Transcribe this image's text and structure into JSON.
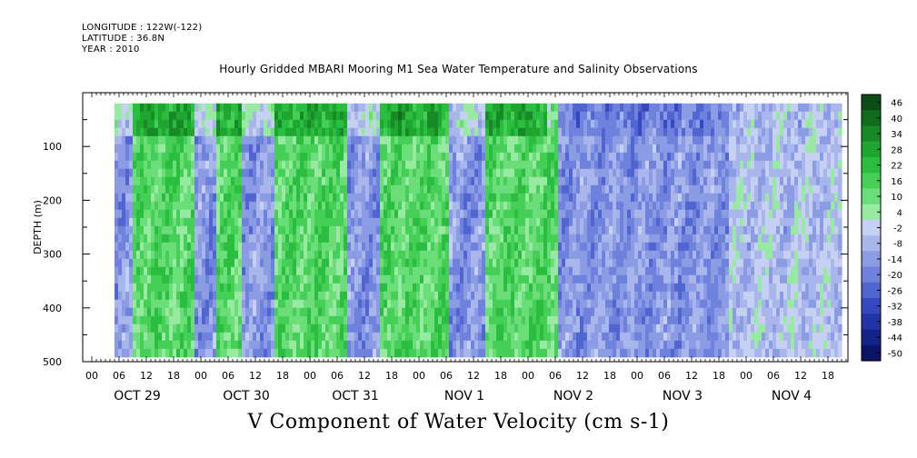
{
  "header": {
    "longitude": "LONGITUDE : 122W(-122)",
    "latitude": "LATITUDE : 36.8N",
    "year": "YEAR : 2010"
  },
  "chart_data": {
    "type": "heatmap",
    "title": "Hourly Gridded MBARI Mooring M1 Sea Water Temperature and Salinity Observations",
    "xlabel": "V Component of Water Velocity (cm s-1)",
    "ylabel": "DEPTH (m)",
    "y_axis": {
      "inverted": true,
      "ylim": [
        0,
        500
      ],
      "ticks": [
        100,
        200,
        300,
        400,
        500
      ],
      "ticks_unlabeled": [
        50,
        150,
        250,
        350,
        450
      ]
    },
    "x_axis": {
      "hour_ticks": [
        "00",
        "06",
        "12",
        "18",
        "00",
        "06",
        "12",
        "18",
        "00",
        "06",
        "12",
        "18",
        "00",
        "06",
        "12",
        "18",
        "00",
        "06",
        "12",
        "18",
        "00",
        "06",
        "12",
        "18",
        "00",
        "06",
        "12",
        "18"
      ],
      "date_labels": [
        "OCT 29",
        "OCT 30",
        "OCT 31",
        "NOV  1",
        "NOV  2",
        "NOV  3",
        "NOV  4"
      ]
    },
    "data_extent": {
      "start_hour": 5,
      "end_hour": 165,
      "depth_top": 20,
      "depth_bottom": 485
    },
    "colorbar": {
      "labels": [
        "46",
        "40",
        "34",
        "28",
        "22",
        "16",
        "10",
        "4",
        "-2",
        "-8",
        "-14",
        "-20",
        "-26",
        "-32",
        "-38",
        "-44",
        "-50"
      ],
      "colors": [
        "#0b4d14",
        "#116b1d",
        "#178a27",
        "#1ea631",
        "#2bbd40",
        "#45cf57",
        "#6bdd79",
        "#98e9a2",
        "#c5d0f3",
        "#a9b6ec",
        "#8b9be4",
        "#6e81dc",
        "#5165d1",
        "#3548c2",
        "#2233a8",
        "#142388",
        "#0a1466"
      ]
    },
    "field_features": [
      {
        "t0": 5,
        "t1": 9,
        "level": "blue"
      },
      {
        "t0": 9,
        "t1": 15,
        "level": "green"
      },
      {
        "t0": 15,
        "t1": 22,
        "level": "green"
      },
      {
        "t0": 22,
        "t1": 27,
        "level": "blue"
      },
      {
        "t0": 27,
        "t1": 33,
        "level": "green"
      },
      {
        "t0": 33,
        "t1": 40,
        "level": "blue"
      },
      {
        "t0": 40,
        "t1": 48,
        "level": "green"
      },
      {
        "t0": 48,
        "t1": 56,
        "level": "green"
      },
      {
        "t0": 56,
        "t1": 63,
        "level": "blue"
      },
      {
        "t0": 63,
        "t1": 70,
        "level": "green"
      },
      {
        "t0": 70,
        "t1": 78,
        "level": "green"
      },
      {
        "t0": 78,
        "t1": 86,
        "level": "blue"
      },
      {
        "t0": 86,
        "t1": 96,
        "level": "green"
      },
      {
        "t0": 96,
        "t1": 102,
        "level": "green"
      },
      {
        "t0": 102,
        "t1": 108,
        "level": "blue"
      },
      {
        "t0": 108,
        "t1": 128,
        "level": "blue"
      },
      {
        "t0": 128,
        "t1": 140,
        "level": "blue"
      },
      {
        "t0": 140,
        "t1": 152,
        "level": "mixed"
      },
      {
        "t0": 152,
        "t1": 165,
        "level": "mixed"
      }
    ]
  }
}
